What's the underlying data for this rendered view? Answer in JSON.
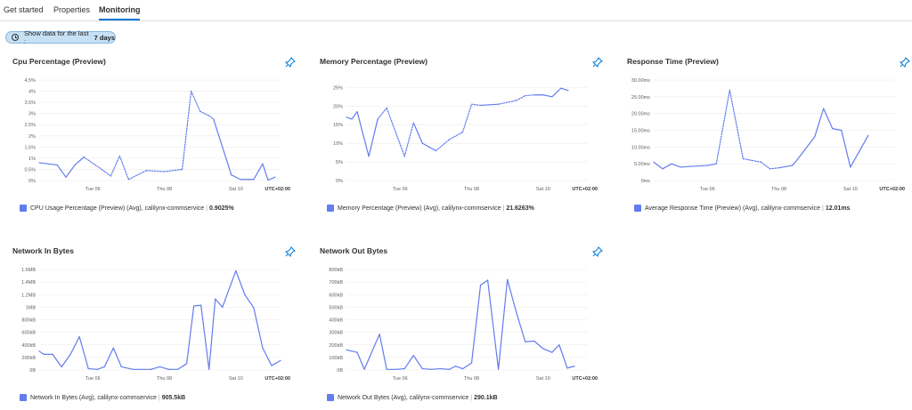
{
  "tabs": [
    {
      "label": "Get started",
      "active": false
    },
    {
      "label": "Properties",
      "active": false
    },
    {
      "label": "Monitoring",
      "active": true
    }
  ],
  "timeFilter": {
    "prefix": "Show data for the last :",
    "value": "7 days"
  },
  "colors": {
    "accent": "#0078d4",
    "series": "#637cef",
    "pill": "#c7e0f4"
  },
  "charts": [
    {
      "title": "Cpu Percentage (Preview)",
      "yTicks": [
        "4.5%",
        "4%",
        "3.5%",
        "3%",
        "2.5%",
        "2%",
        "1.5%",
        "1%",
        "0.5%",
        "0%"
      ],
      "yMax": 4.5,
      "xTicks": [
        "Tue 06",
        "Thu 08",
        "Sat 10"
      ],
      "utc": "UTC+02:00",
      "points": [
        [
          0,
          0.8
        ],
        [
          1,
          0.75
        ],
        [
          2,
          0.7
        ],
        [
          3,
          0.15
        ],
        [
          4,
          0.7
        ],
        [
          5,
          1.05
        ],
        [
          7,
          0.5
        ],
        [
          8,
          0.2
        ],
        [
          9,
          1.1
        ],
        [
          10,
          0.05
        ],
        [
          12,
          0.45
        ],
        [
          14,
          0.4
        ],
        [
          16,
          0.5
        ],
        [
          17,
          4.0
        ],
        [
          18,
          3.1
        ],
        [
          19,
          2.9
        ],
        [
          19.5,
          2.75
        ],
        [
          20.5,
          1.5
        ],
        [
          21.5,
          0.25
        ],
        [
          22.5,
          0.05
        ],
        [
          23.5,
          0.05
        ],
        [
          24,
          0.05
        ],
        [
          25,
          0.75
        ],
        [
          25.6,
          0.02
        ],
        [
          26.4,
          0.15
        ]
      ],
      "dashed": [
        5,
        6,
        7,
        8,
        9,
        10,
        11,
        12,
        13,
        14,
        15
      ],
      "legend": "CPU Usage Percentage (Preview) (Avg), calilynx-commservice",
      "value": "0.9025%"
    },
    {
      "title": "Memory Percentage (Preview)",
      "yTicks": [
        "25%",
        "20%",
        "15%",
        "10%",
        "5%",
        "0%"
      ],
      "yMax": 27,
      "xTicks": [
        "Tue 06",
        "Thu 08",
        "Sat 10"
      ],
      "utc": "UTC+02:00",
      "points": [
        [
          0,
          17
        ],
        [
          0.6,
          16.5
        ],
        [
          1.2,
          18.5
        ],
        [
          2.5,
          6.5
        ],
        [
          3.5,
          16.5
        ],
        [
          4.5,
          19.5
        ],
        [
          6.5,
          6.5
        ],
        [
          7.5,
          15.5
        ],
        [
          8.5,
          10
        ],
        [
          10,
          8
        ],
        [
          11.5,
          11
        ],
        [
          13,
          13
        ],
        [
          14,
          20.5
        ],
        [
          15,
          20.2
        ],
        [
          17,
          20.5
        ],
        [
          19,
          21.5
        ],
        [
          20,
          22.8
        ],
        [
          21,
          23
        ],
        [
          22,
          23
        ],
        [
          23,
          22.5
        ],
        [
          24,
          24.8
        ],
        [
          24.8,
          24.2
        ]
      ],
      "dashed": [
        4,
        5,
        6,
        9,
        10,
        11,
        12,
        14,
        15,
        16
      ],
      "legend": "Memory Percentage (Preview) (Avg), calilynx-commservice",
      "value": "21.6263%"
    },
    {
      "title": "Response Time (Preview)",
      "yTicks": [
        "30.00ms",
        "25.00ms",
        "20.00ms",
        "15.00ms",
        "10.00ms",
        "5.00ms",
        "0ms"
      ],
      "yMax": 30,
      "xTicks": [
        "Tue 06",
        "Thu 08",
        "Sat 10"
      ],
      "utc": "UTC+02:00",
      "points": [
        [
          0,
          5.5
        ],
        [
          1,
          3.5
        ],
        [
          2,
          5
        ],
        [
          3,
          4
        ],
        [
          4,
          4.2
        ],
        [
          6,
          4.5
        ],
        [
          7,
          5
        ],
        [
          8.5,
          27
        ],
        [
          10,
          6.5
        ],
        [
          11,
          6
        ],
        [
          12,
          5.5
        ],
        [
          13,
          3.5
        ],
        [
          14,
          3.8
        ],
        [
          15.5,
          4.5
        ],
        [
          16,
          6
        ],
        [
          18,
          13
        ],
        [
          19,
          21.5
        ],
        [
          20,
          15.5
        ],
        [
          21,
          15
        ],
        [
          22,
          4
        ],
        [
          24,
          13.5
        ]
      ],
      "dashed": [
        6,
        7,
        8,
        9,
        10,
        11,
        20
      ],
      "legend": "Average Response Time (Preview) (Avg), calilynx-commservice",
      "value": "12.01ms"
    },
    {
      "title": "Network In Bytes",
      "yTicks": [
        "1.6MB",
        "1.4MB",
        "1.2MB",
        "1MB",
        "800kB",
        "600kB",
        "400kB",
        "200kB",
        "0B"
      ],
      "yMax": 1.6,
      "xTicks": [
        "Tue 06",
        "Thu 08",
        "Sat 10"
      ],
      "utc": "UTC+02:00",
      "points": [
        [
          0,
          0.3
        ],
        [
          0.5,
          0.25
        ],
        [
          1.5,
          0.25
        ],
        [
          2.5,
          0.05
        ],
        [
          3.5,
          0.25
        ],
        [
          4.5,
          0.53
        ],
        [
          5.5,
          0.02
        ],
        [
          6.5,
          0.01
        ],
        [
          7.3,
          0.05
        ],
        [
          8.3,
          0.35
        ],
        [
          9.2,
          0.05
        ],
        [
          10.5,
          0.01
        ],
        [
          11.5,
          0.01
        ],
        [
          12.5,
          0.01
        ],
        [
          13.5,
          0.05
        ],
        [
          14.5,
          0.01
        ],
        [
          15.5,
          0.01
        ],
        [
          16.5,
          0.1
        ],
        [
          17.3,
          1.02
        ],
        [
          18.1,
          1.03
        ],
        [
          19,
          0.01
        ],
        [
          19.7,
          1.13
        ],
        [
          20.5,
          1.0
        ],
        [
          22,
          1.58
        ],
        [
          23,
          1.2
        ],
        [
          24,
          0.99
        ],
        [
          25,
          0.35
        ],
        [
          26,
          0.07
        ],
        [
          27,
          0.15
        ]
      ],
      "dashed": [],
      "legend": "Network In Bytes (Avg), calilynx-commservice",
      "value": "905.5kB"
    },
    {
      "title": "Network Out Bytes",
      "yTicks": [
        "800kB",
        "700kB",
        "600kB",
        "500kB",
        "400kB",
        "300kB",
        "200kB",
        "100kB",
        "0B"
      ],
      "yMax": 800,
      "xTicks": [
        "Tue 06",
        "Thu 08",
        "Sat 10"
      ],
      "utc": "UTC+02:00",
      "points": [
        [
          0,
          160
        ],
        [
          1.2,
          140
        ],
        [
          2,
          5
        ],
        [
          3.7,
          285
        ],
        [
          4.5,
          5
        ],
        [
          5.5,
          5
        ],
        [
          6.5,
          10
        ],
        [
          7.5,
          115
        ],
        [
          8.5,
          10
        ],
        [
          9.5,
          5
        ],
        [
          10.5,
          10
        ],
        [
          11.5,
          5
        ],
        [
          12.2,
          30
        ],
        [
          13,
          10
        ],
        [
          14,
          55
        ],
        [
          15,
          675
        ],
        [
          15.8,
          715
        ],
        [
          17,
          5
        ],
        [
          18,
          720
        ],
        [
          19,
          460
        ],
        [
          20,
          225
        ],
        [
          21,
          230
        ],
        [
          22,
          170
        ],
        [
          23,
          140
        ],
        [
          23.8,
          200
        ],
        [
          24.7,
          15
        ],
        [
          25.5,
          30
        ]
      ],
      "dashed": [],
      "legend": "Network Out Bytes (Avg), calilynx-commservice",
      "value": "290.1kB"
    }
  ]
}
